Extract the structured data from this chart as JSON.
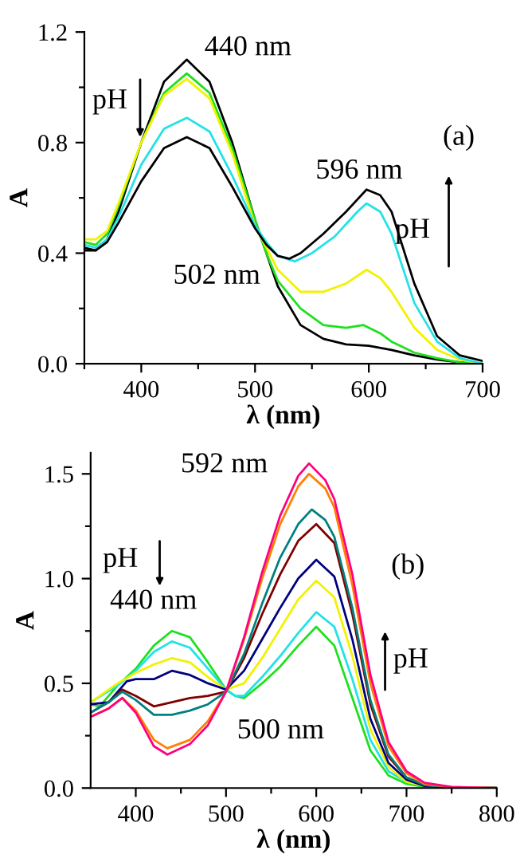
{
  "chart_data": [
    {
      "type": "line",
      "xlabel": "λ (nm)",
      "ylabel": "A",
      "xlim": [
        350,
        700
      ],
      "ylim": [
        0,
        1.2
      ],
      "xticks": [
        {
          "value": 350,
          "label": null
        },
        400,
        {
          "value": 450,
          "label": null
        },
        500,
        {
          "value": 550,
          "label": null
        },
        600,
        {
          "value": 650,
          "label": null
        },
        700
      ],
      "yticks": [
        {
          "value": 0,
          "label": "0.0"
        },
        {
          "value": 0.2,
          "label": null
        },
        0.4,
        {
          "value": 0.6,
          "label": null
        },
        0.8,
        {
          "value": 1.0,
          "label": null
        },
        1.2
      ],
      "grid": false,
      "legend": false,
      "marker": "none",
      "line_style": "solid",
      "annotations": [
        {
          "text": "440 nm",
          "x": 440,
          "y": 1.1
        },
        {
          "text": "596 nm",
          "x": 596,
          "y": 0.63
        },
        {
          "text": "502 nm",
          "x": 502,
          "y": 0.45
        },
        "pH",
        "pH",
        "(a)"
      ],
      "series": [
        {
          "color": "#000000",
          "x": [
            350,
            360,
            370,
            380,
            400,
            420,
            440,
            460,
            480,
            500,
            510,
            520,
            540,
            560,
            580,
            600,
            620,
            640,
            660,
            680,
            700
          ],
          "values": [
            0.42,
            0.41,
            0.45,
            0.55,
            0.8,
            1.02,
            1.1,
            1.02,
            0.8,
            0.52,
            0.4,
            0.28,
            0.14,
            0.09,
            0.07,
            0.065,
            0.05,
            0.03,
            0.015,
            0.005,
            0
          ]
        },
        {
          "color": "#1ee01e",
          "x": [
            350,
            360,
            370,
            380,
            400,
            420,
            440,
            460,
            480,
            500,
            510,
            520,
            540,
            560,
            580,
            595,
            610,
            620,
            640,
            660,
            680,
            700
          ],
          "values": [
            0.44,
            0.43,
            0.47,
            0.57,
            0.8,
            0.98,
            1.05,
            0.98,
            0.78,
            0.52,
            0.4,
            0.3,
            0.2,
            0.14,
            0.13,
            0.14,
            0.11,
            0.08,
            0.04,
            0.02,
            0.005,
            0
          ]
        },
        {
          "color": "#f2f200",
          "x": [
            350,
            360,
            370,
            380,
            400,
            420,
            440,
            460,
            480,
            500,
            510,
            520,
            540,
            560,
            580,
            598,
            610,
            620,
            640,
            660,
            680,
            700
          ],
          "values": [
            0.45,
            0.45,
            0.48,
            0.58,
            0.8,
            0.97,
            1.03,
            0.96,
            0.76,
            0.5,
            0.42,
            0.34,
            0.26,
            0.26,
            0.29,
            0.34,
            0.31,
            0.26,
            0.13,
            0.05,
            0.015,
            0
          ]
        },
        {
          "color": "#22e2e8",
          "x": [
            350,
            360,
            370,
            380,
            400,
            420,
            440,
            460,
            480,
            500,
            510,
            520,
            535,
            550,
            570,
            590,
            598,
            610,
            620,
            640,
            660,
            680,
            700
          ],
          "values": [
            0.43,
            0.42,
            0.45,
            0.53,
            0.72,
            0.85,
            0.89,
            0.84,
            0.68,
            0.5,
            0.44,
            0.39,
            0.37,
            0.4,
            0.46,
            0.55,
            0.58,
            0.55,
            0.47,
            0.22,
            0.08,
            0.02,
            0
          ]
        },
        {
          "color": "#000000",
          "x": [
            350,
            360,
            370,
            380,
            400,
            420,
            440,
            460,
            480,
            500,
            510,
            520,
            530,
            540,
            560,
            580,
            598,
            610,
            620,
            640,
            660,
            680,
            700
          ],
          "values": [
            0.41,
            0.41,
            0.44,
            0.51,
            0.66,
            0.78,
            0.82,
            0.78,
            0.64,
            0.49,
            0.43,
            0.39,
            0.38,
            0.4,
            0.47,
            0.55,
            0.63,
            0.61,
            0.55,
            0.29,
            0.1,
            0.03,
            0.01
          ]
        }
      ]
    },
    {
      "type": "line",
      "xlabel": "λ (nm)",
      "ylabel": "A",
      "xlim": [
        350,
        800
      ],
      "ylim": [
        0,
        1.6
      ],
      "xticks": [
        400,
        {
          "value": 450,
          "label": null
        },
        500,
        {
          "value": 550,
          "label": null
        },
        600,
        {
          "value": 650,
          "label": null
        },
        700,
        {
          "value": 750,
          "label": null
        },
        800
      ],
      "yticks": [
        {
          "value": 0,
          "label": "0.0"
        },
        {
          "value": 0.25,
          "label": null
        },
        {
          "value": 0.5,
          "label": "0.5"
        },
        {
          "value": 0.75,
          "label": null
        },
        {
          "value": 1.0,
          "label": "1.0"
        },
        {
          "value": 1.25,
          "label": null
        },
        {
          "value": 1.5,
          "label": "1.5"
        }
      ],
      "grid": false,
      "legend": false,
      "marker": "none",
      "line_style": "solid",
      "annotations": [
        {
          "text": "592 nm",
          "x": 592,
          "y": 1.55
        },
        {
          "text": "440 nm",
          "x": 440,
          "y": 0.75
        },
        {
          "text": "500 nm",
          "x": 500,
          "y": 0.47
        },
        "pH",
        "pH",
        "(b)"
      ],
      "series": [
        {
          "color": "#1ee01e",
          "x": [
            350,
            360,
            370,
            380,
            400,
            420,
            440,
            460,
            480,
            500,
            510,
            520,
            540,
            560,
            580,
            600,
            620,
            640,
            660,
            680,
            700,
            720,
            750,
            800
          ],
          "values": [
            0.4,
            0.39,
            0.44,
            0.49,
            0.57,
            0.68,
            0.75,
            0.72,
            0.6,
            0.47,
            0.44,
            0.43,
            0.5,
            0.58,
            0.68,
            0.77,
            0.68,
            0.43,
            0.18,
            0.06,
            0.02,
            0.005,
            0,
            0
          ]
        },
        {
          "color": "#22e2e8",
          "x": [
            350,
            380,
            400,
            420,
            440,
            460,
            480,
            500,
            510,
            520,
            540,
            560,
            580,
            600,
            620,
            640,
            660,
            680,
            700,
            720
          ],
          "values": [
            0.41,
            0.49,
            0.56,
            0.65,
            0.7,
            0.67,
            0.57,
            0.47,
            0.44,
            0.44,
            0.53,
            0.63,
            0.74,
            0.84,
            0.77,
            0.52,
            0.23,
            0.08,
            0.03,
            0.01
          ]
        },
        {
          "color": "#f2f200",
          "x": [
            350,
            380,
            400,
            420,
            440,
            460,
            480,
            500,
            520,
            540,
            560,
            580,
            600,
            620,
            640,
            660,
            680,
            700,
            720,
            750,
            800
          ],
          "values": [
            0.41,
            0.5,
            0.55,
            0.59,
            0.62,
            0.6,
            0.53,
            0.47,
            0.5,
            0.62,
            0.76,
            0.9,
            0.99,
            0.91,
            0.63,
            0.28,
            0.1,
            0.03,
            0.01,
            0,
            0
          ]
        },
        {
          "color": "#000080",
          "x": [
            350,
            370,
            390,
            400,
            420,
            440,
            460,
            480,
            500,
            520,
            540,
            560,
            580,
            600,
            620,
            640,
            660,
            680,
            700,
            720,
            750,
            800
          ],
          "values": [
            0.4,
            0.41,
            0.51,
            0.52,
            0.52,
            0.56,
            0.54,
            0.5,
            0.47,
            0.56,
            0.71,
            0.86,
            1.0,
            1.09,
            1.01,
            0.71,
            0.33,
            0.12,
            0.04,
            0.01,
            0,
            0
          ]
        },
        {
          "color": "#800000",
          "x": [
            350,
            370,
            385,
            400,
            420,
            440,
            460,
            480,
            500,
            520,
            540,
            560,
            580,
            600,
            620,
            640,
            660,
            680,
            700,
            720,
            750,
            800
          ],
          "values": [
            0.36,
            0.41,
            0.47,
            0.44,
            0.39,
            0.41,
            0.43,
            0.44,
            0.46,
            0.62,
            0.83,
            1.02,
            1.18,
            1.26,
            1.17,
            0.83,
            0.4,
            0.15,
            0.05,
            0.015,
            0,
            0
          ]
        },
        {
          "color": "#008080",
          "x": [
            350,
            370,
            385,
            400,
            420,
            440,
            460,
            480,
            500,
            520,
            540,
            560,
            580,
            595,
            610,
            620,
            640,
            660,
            680,
            700,
            720,
            750,
            800
          ],
          "values": [
            0.36,
            0.41,
            0.46,
            0.42,
            0.35,
            0.35,
            0.37,
            0.4,
            0.46,
            0.64,
            0.88,
            1.1,
            1.26,
            1.33,
            1.28,
            1.2,
            0.86,
            0.42,
            0.16,
            0.05,
            0.015,
            0,
            0
          ]
        },
        {
          "color": "#ff8000",
          "x": [
            350,
            370,
            385,
            400,
            420,
            435,
            460,
            480,
            500,
            520,
            540,
            560,
            580,
            592,
            610,
            620,
            640,
            660,
            680,
            700,
            720,
            750,
            800
          ],
          "values": [
            0.34,
            0.38,
            0.43,
            0.37,
            0.23,
            0.19,
            0.23,
            0.32,
            0.46,
            0.71,
            1.0,
            1.26,
            1.44,
            1.5,
            1.43,
            1.34,
            0.97,
            0.5,
            0.2,
            0.07,
            0.02,
            0.005,
            0
          ]
        },
        {
          "color": "#ff0080",
          "x": [
            350,
            370,
            385,
            400,
            420,
            435,
            460,
            480,
            500,
            520,
            540,
            560,
            580,
            592,
            610,
            620,
            640,
            660,
            680,
            700,
            720,
            750,
            800
          ],
          "values": [
            0.34,
            0.38,
            0.43,
            0.36,
            0.2,
            0.16,
            0.21,
            0.3,
            0.46,
            0.72,
            1.03,
            1.3,
            1.49,
            1.55,
            1.47,
            1.38,
            1.02,
            0.54,
            0.22,
            0.08,
            0.025,
            0.005,
            0
          ]
        }
      ]
    }
  ]
}
